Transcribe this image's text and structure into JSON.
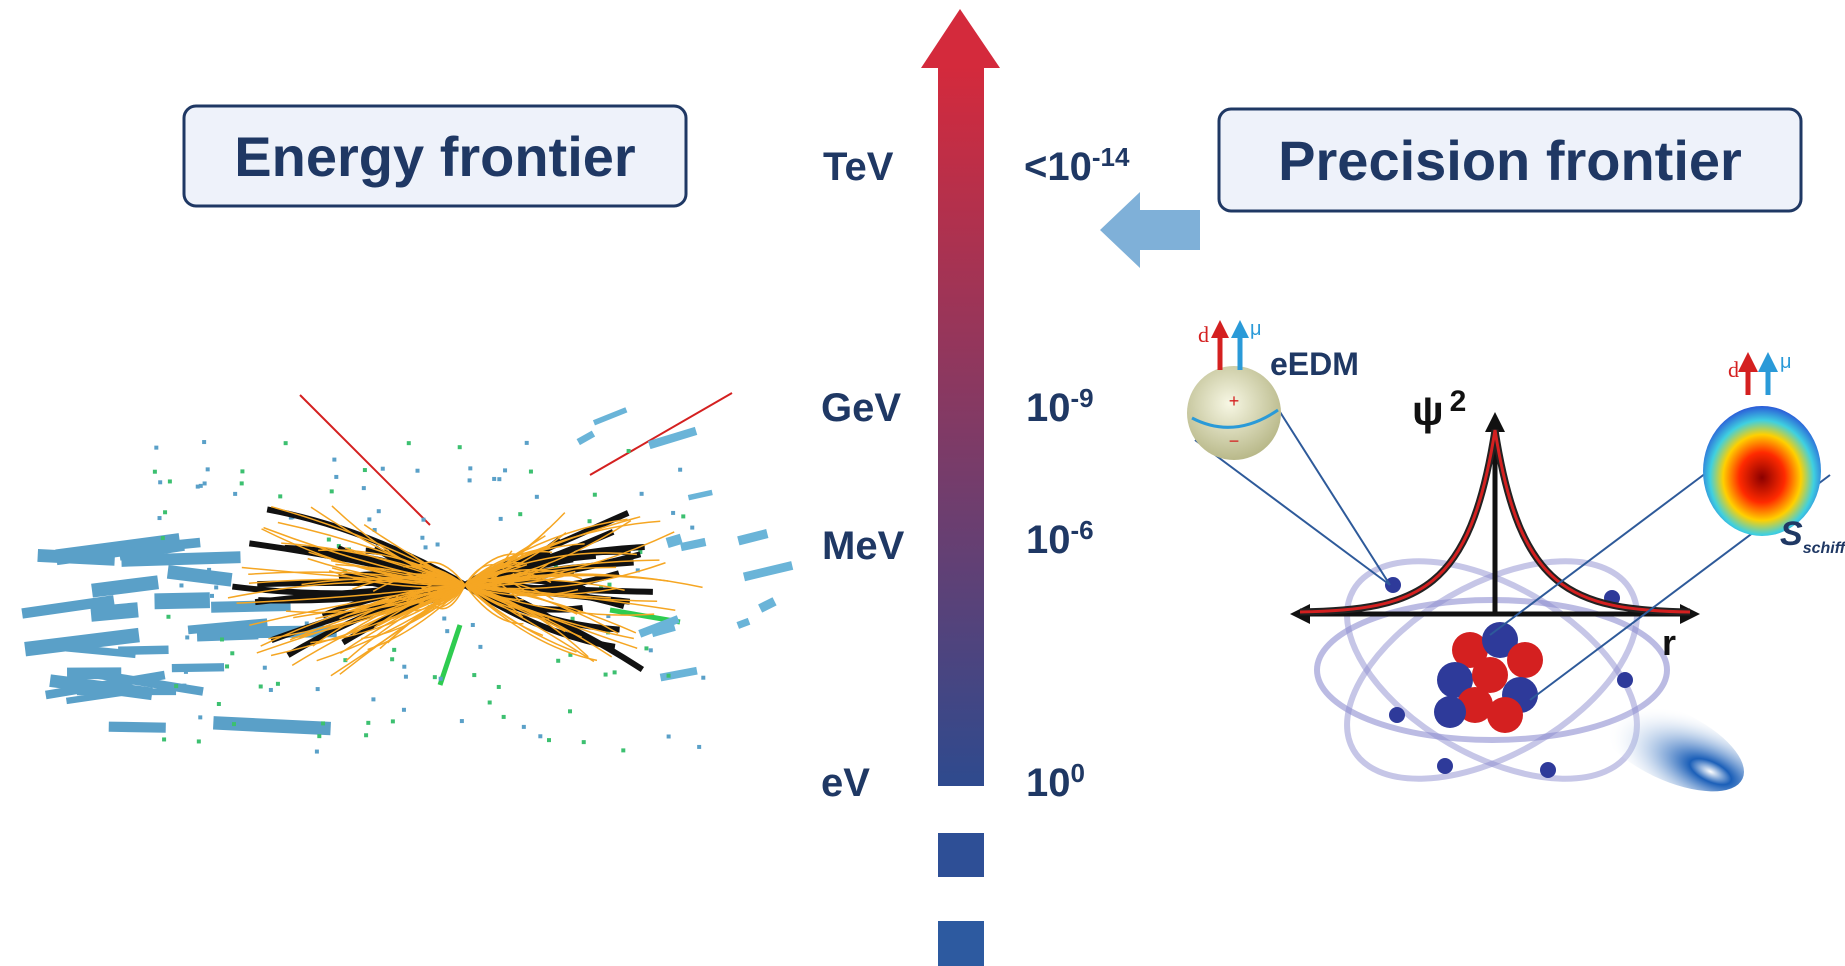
{
  "energy_frontier": {
    "title": "Energy frontier"
  },
  "precision_frontier": {
    "title": "Precision frontier"
  },
  "scale": {
    "energy_labels": [
      "TeV",
      "GeV",
      "MeV",
      "eV"
    ],
    "precision_labels": [
      {
        "base": "<10",
        "exponent": "-14"
      },
      {
        "base": "10",
        "exponent": "-9"
      },
      {
        "base": "10",
        "exponent": "-6"
      },
      {
        "base": "10",
        "exponent": "0"
      }
    ]
  },
  "atom_diagram": {
    "left_spin": {
      "d": "d",
      "mu": "μ",
      "label": "eEDM"
    },
    "right_spin": {
      "d": "d",
      "mu": "μ"
    },
    "psi": "ψ",
    "psi_exponent": "2",
    "r_axis": "r",
    "schiff": {
      "symbol": "S",
      "subscript": "schiff"
    }
  }
}
